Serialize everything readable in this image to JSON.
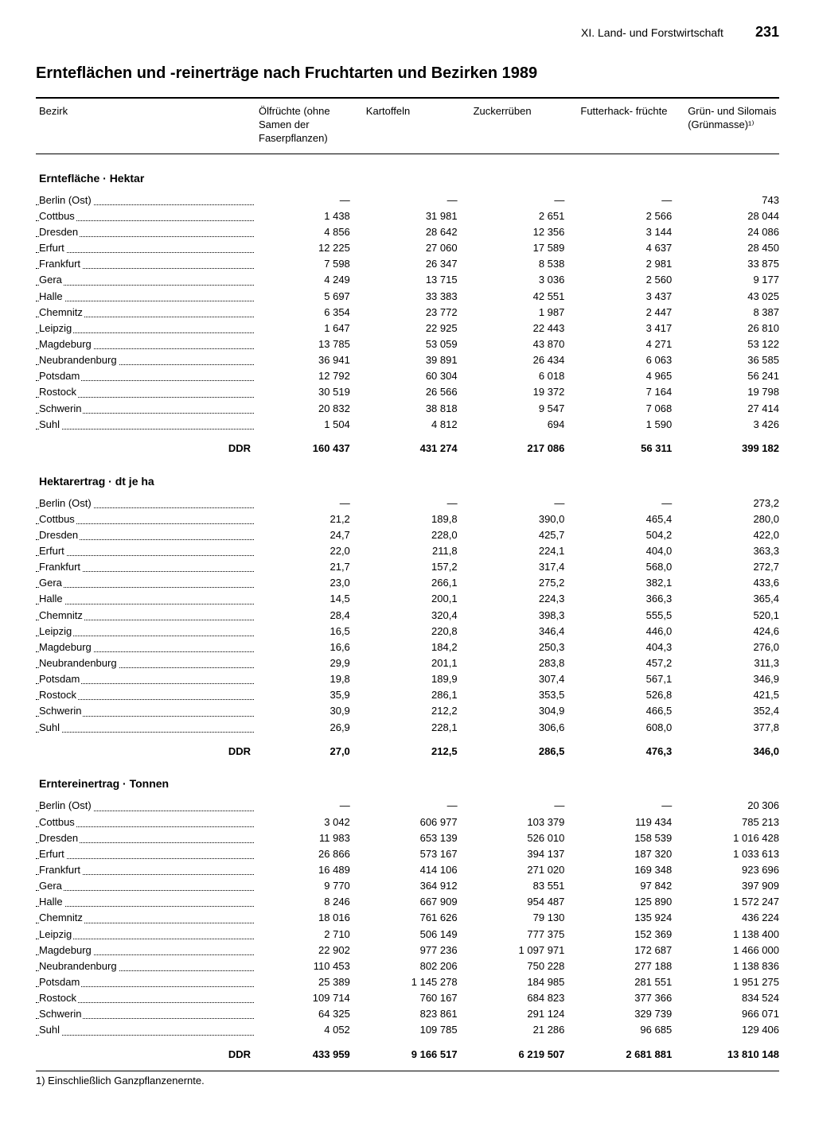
{
  "chapter": "XI. Land- und Forstwirtschaft",
  "pageNumber": "231",
  "title": "Ernteflächen und -reinerträge nach Fruchtarten und Bezirken 1989",
  "columns": [
    "Bezirk",
    "Ölfrüchte\n(ohne Samen\nder Faserpflanzen)",
    "Kartoffeln",
    "Zuckerrüben",
    "Futterhack-\nfrüchte",
    "Grün- und\nSilomais\n(Grünmasse)¹⁾"
  ],
  "rowLabels": [
    "Berlin (Ost)",
    "Cottbus",
    "Dresden",
    "Erfurt",
    "Frankfurt",
    "Gera",
    "Halle",
    "Chemnitz",
    "Leipzig",
    "Magdeburg",
    "Neubrandenburg",
    "Potsdam",
    "Rostock",
    "Schwerin",
    "Suhl"
  ],
  "totalLabel": "DDR",
  "sections": [
    {
      "title": "Erntefläche · Hektar",
      "rows": [
        [
          "—",
          "—",
          "—",
          "—",
          "743"
        ],
        [
          "1 438",
          "31 981",
          "2 651",
          "2 566",
          "28 044"
        ],
        [
          "4 856",
          "28 642",
          "12 356",
          "3 144",
          "24 086"
        ],
        [
          "12 225",
          "27 060",
          "17 589",
          "4 637",
          "28 450"
        ],
        [
          "7 598",
          "26 347",
          "8 538",
          "2 981",
          "33 875"
        ],
        [
          "4 249",
          "13 715",
          "3 036",
          "2 560",
          "9 177"
        ],
        [
          "5 697",
          "33 383",
          "42 551",
          "3 437",
          "43 025"
        ],
        [
          "6 354",
          "23 772",
          "1 987",
          "2 447",
          "8 387"
        ],
        [
          "1 647",
          "22 925",
          "22 443",
          "3 417",
          "26 810"
        ],
        [
          "13 785",
          "53 059",
          "43 870",
          "4 271",
          "53 122"
        ],
        [
          "36 941",
          "39 891",
          "26 434",
          "6 063",
          "36 585"
        ],
        [
          "12 792",
          "60 304",
          "6 018",
          "4 965",
          "56 241"
        ],
        [
          "30 519",
          "26 566",
          "19 372",
          "7 164",
          "19 798"
        ],
        [
          "20 832",
          "38 818",
          "9 547",
          "7 068",
          "27 414"
        ],
        [
          "1 504",
          "4 812",
          "694",
          "1 590",
          "3 426"
        ]
      ],
      "total": [
        "160 437",
        "431 274",
        "217 086",
        "56 311",
        "399 182"
      ]
    },
    {
      "title": "Hektarertrag · dt je ha",
      "rows": [
        [
          "—",
          "—",
          "—",
          "—",
          "273,2"
        ],
        [
          "21,2",
          "189,8",
          "390,0",
          "465,4",
          "280,0"
        ],
        [
          "24,7",
          "228,0",
          "425,7",
          "504,2",
          "422,0"
        ],
        [
          "22,0",
          "211,8",
          "224,1",
          "404,0",
          "363,3"
        ],
        [
          "21,7",
          "157,2",
          "317,4",
          "568,0",
          "272,7"
        ],
        [
          "23,0",
          "266,1",
          "275,2",
          "382,1",
          "433,6"
        ],
        [
          "14,5",
          "200,1",
          "224,3",
          "366,3",
          "365,4"
        ],
        [
          "28,4",
          "320,4",
          "398,3",
          "555,5",
          "520,1"
        ],
        [
          "16,5",
          "220,8",
          "346,4",
          "446,0",
          "424,6"
        ],
        [
          "16,6",
          "184,2",
          "250,3",
          "404,3",
          "276,0"
        ],
        [
          "29,9",
          "201,1",
          "283,8",
          "457,2",
          "311,3"
        ],
        [
          "19,8",
          "189,9",
          "307,4",
          "567,1",
          "346,9"
        ],
        [
          "35,9",
          "286,1",
          "353,5",
          "526,8",
          "421,5"
        ],
        [
          "30,9",
          "212,2",
          "304,9",
          "466,5",
          "352,4"
        ],
        [
          "26,9",
          "228,1",
          "306,6",
          "608,0",
          "377,8"
        ]
      ],
      "total": [
        "27,0",
        "212,5",
        "286,5",
        "476,3",
        "346,0"
      ]
    },
    {
      "title": "Erntereinertrag · Tonnen",
      "rows": [
        [
          "—",
          "—",
          "—",
          "—",
          "20 306"
        ],
        [
          "3 042",
          "606 977",
          "103 379",
          "119 434",
          "785 213"
        ],
        [
          "11 983",
          "653 139",
          "526 010",
          "158 539",
          "1 016 428"
        ],
        [
          "26 866",
          "573 167",
          "394 137",
          "187 320",
          "1 033 613"
        ],
        [
          "16 489",
          "414 106",
          "271 020",
          "169 348",
          "923 696"
        ],
        [
          "9 770",
          "364 912",
          "83 551",
          "97 842",
          "397 909"
        ],
        [
          "8 246",
          "667 909",
          "954 487",
          "125 890",
          "1 572 247"
        ],
        [
          "18 016",
          "761 626",
          "79 130",
          "135 924",
          "436 224"
        ],
        [
          "2 710",
          "506 149",
          "777 375",
          "152 369",
          "1 138 400"
        ],
        [
          "22 902",
          "977 236",
          "1 097 971",
          "172 687",
          "1 466 000"
        ],
        [
          "110 453",
          "802 206",
          "750 228",
          "277 188",
          "1 138 836"
        ],
        [
          "25 389",
          "1 145 278",
          "184 985",
          "281 551",
          "1 951 275"
        ],
        [
          "109 714",
          "760 167",
          "684 823",
          "377 366",
          "834 524"
        ],
        [
          "64 325",
          "823 861",
          "291 124",
          "329 739",
          "966 071"
        ],
        [
          "4 052",
          "109 785",
          "21 286",
          "96 685",
          "129 406"
        ]
      ],
      "total": [
        "433 959",
        "9 166 517",
        "6 219 507",
        "2 681 881",
        "13 810 148"
      ]
    }
  ],
  "footnote": "1) Einschließlich Ganzpflanzenernte."
}
